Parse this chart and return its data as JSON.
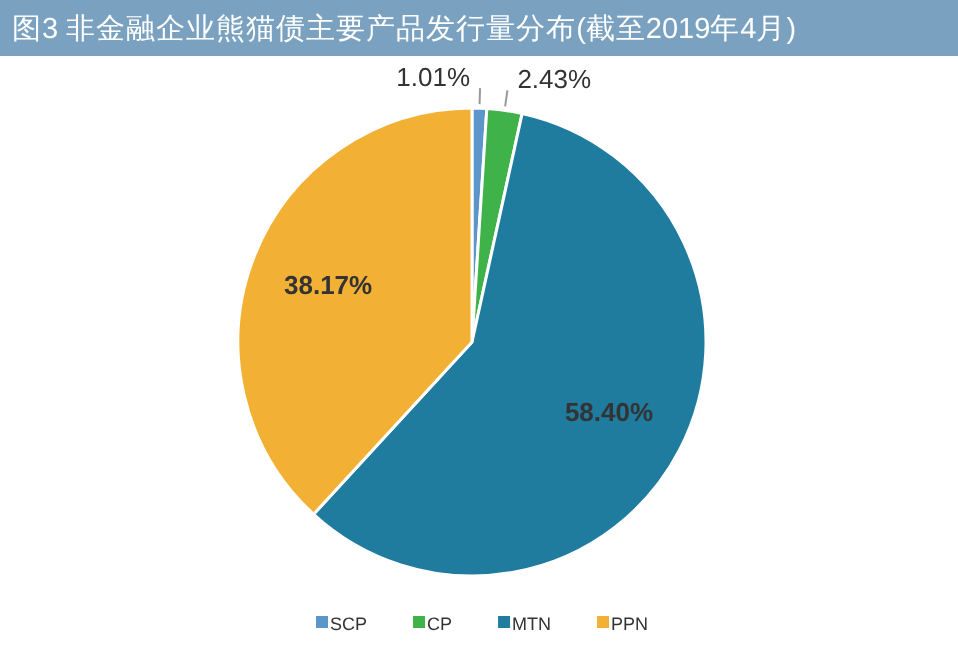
{
  "chart_data": {
    "type": "pie",
    "title": "图3 非金融企业熊猫债主要产品发行量分布(截至2019年4月)",
    "categories": [
      "SCP",
      "CP",
      "MTN",
      "PPN"
    ],
    "values": [
      1.01,
      2.43,
      58.4,
      38.17
    ],
    "value_labels": [
      "1.01%",
      "2.43%",
      "58.40%",
      "38.17%"
    ],
    "colors": [
      "#5b95c9",
      "#3fb24a",
      "#1f7c9e",
      "#f2b035"
    ],
    "legend": "bottom"
  }
}
